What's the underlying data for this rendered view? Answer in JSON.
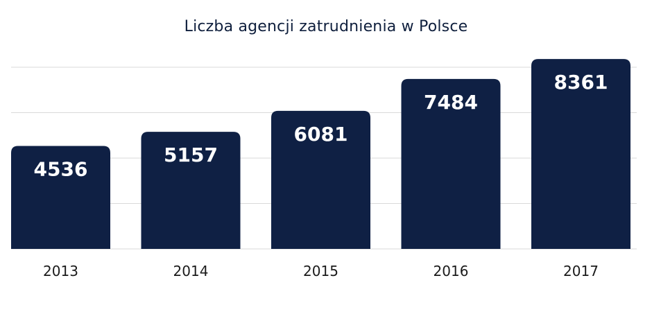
{
  "chart_data": {
    "type": "bar",
    "title": "Liczba agencji zatrudnienia w Polsce",
    "categories": [
      "2013",
      "2014",
      "2015",
      "2016",
      "2017"
    ],
    "values": [
      4536,
      5157,
      6081,
      7484,
      8361
    ],
    "xlabel": "",
    "ylabel": "",
    "ylim": [
      0,
      8000
    ],
    "grid": true,
    "legend": "none",
    "bar_color": "#0f2044",
    "label_color": "#ffffff"
  }
}
